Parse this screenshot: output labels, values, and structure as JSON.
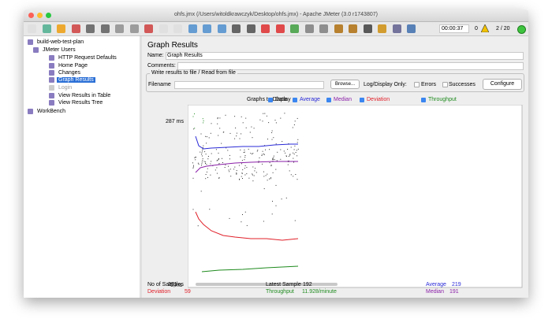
{
  "window": {
    "title": "ohfs.jmx (/Users/witoldkrawczyk/Desktop/ohfs.jmx) - Apache JMeter (3.0 r1743807)"
  },
  "toolbar": {
    "timer": "00:00:37",
    "warnings": "0",
    "threads": "2 / 20"
  },
  "tree": {
    "items": [
      {
        "label": "build-web-test-plan",
        "level": 0
      },
      {
        "label": "JMeter Users",
        "level": 1
      },
      {
        "label": "HTTP Request Defaults",
        "level": 2
      },
      {
        "label": "Home Page",
        "level": 2
      },
      {
        "label": "Changes",
        "level": 2
      },
      {
        "label": "Graph Results",
        "level": 2,
        "selected": true
      },
      {
        "label": "Login",
        "level": 2,
        "disabled": true
      },
      {
        "label": "View Results in Table",
        "level": 2
      },
      {
        "label": "View Results Tree",
        "level": 2
      },
      {
        "label": "WorkBench",
        "level": 0
      }
    ]
  },
  "panel": {
    "title": "Graph Results",
    "name_label": "Name:",
    "name_value": "Graph Results",
    "comments_label": "Comments:",
    "file_group": {
      "legend": "Write results to file / Read from file",
      "filename_label": "Filename",
      "browse": "Browse...",
      "log_label": "Log/Display Only:",
      "errors": "Errors",
      "successes": "Successes",
      "configure": "Configure"
    },
    "graphs": {
      "label": "Graphs to Display",
      "options": [
        {
          "label": "Data",
          "color": "#000000"
        },
        {
          "label": "Average",
          "color": "#2a2ad8"
        },
        {
          "label": "Median",
          "color": "#8a1fa8"
        },
        {
          "label": "Deviation",
          "color": "#e0202a"
        },
        {
          "label": "Throughput",
          "color": "#1e8a1e"
        }
      ]
    },
    "graph": {
      "max_label": "287 ms",
      "min_label": "0 ms"
    },
    "stats": [
      {
        "label": "No of Samples",
        "value": 271,
        "color": "#000000"
      },
      {
        "label": "Latest Sample",
        "value": 192,
        "color": "#000000"
      },
      {
        "label": "Average",
        "value": 219,
        "color": "#2a2ad8"
      },
      {
        "label": "Deviation",
        "value": 59,
        "color": "#e0202a"
      },
      {
        "label": "Throughput",
        "value": "11.928/minute",
        "color": "#1e8a1e"
      },
      {
        "label": "Median",
        "value": 191,
        "color": "#8a1fa8"
      }
    ]
  }
}
